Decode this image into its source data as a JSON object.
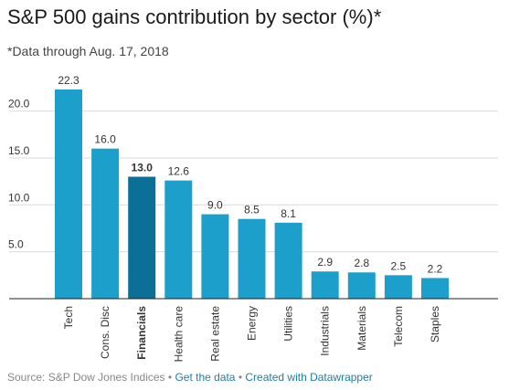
{
  "header": {
    "title": "S&P 500 gains contribution by sector (%)*",
    "subtitle": "*Data through Aug. 17, 2018"
  },
  "footer": {
    "source": "Source: S&P Dow Jones Indices",
    "separator": "•",
    "get_data_link": "Get the data",
    "created_with_link": "Created with Datawrapper"
  },
  "colors": {
    "bar": "#1d9fcc",
    "highlight_bar": "#0c6f98",
    "axis": "#222222",
    "grid": "#d9d9d9",
    "label": "#333333"
  },
  "chart_data": {
    "type": "bar",
    "categories": [
      "Tech",
      "Cons. Disc",
      "Financials",
      "Health care",
      "Real estate",
      "Energy",
      "Utilities",
      "Industrials",
      "Materials",
      "Telecom",
      "Staples"
    ],
    "values": [
      22.3,
      16.0,
      13.0,
      12.6,
      9.0,
      8.5,
      8.1,
      2.9,
      2.8,
      2.5,
      2.2
    ],
    "value_labels": [
      "22.3",
      "16.0",
      "13.0",
      "12.6",
      "9.0",
      "8.5",
      "8.1",
      "2.9",
      "2.8",
      "2.5",
      "2.2"
    ],
    "highlighted_category": "Financials",
    "title": "S&P 500 gains contribution by sector (%)*",
    "xlabel": "",
    "ylabel": "",
    "ylim": [
      0,
      22.3
    ],
    "yticks": [
      5.0,
      10.0,
      15.0,
      20.0
    ],
    "ytick_labels": [
      "5.0",
      "10.0",
      "15.0",
      "20.0"
    ],
    "grid": true,
    "legend": "none"
  }
}
